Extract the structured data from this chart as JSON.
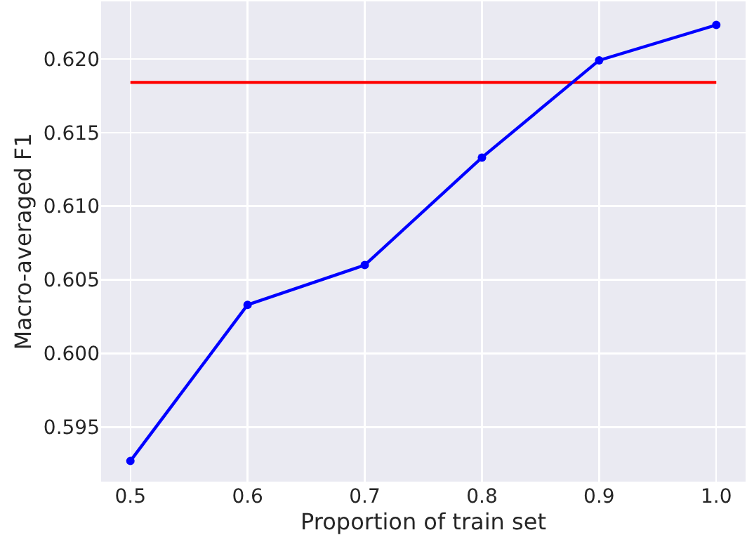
{
  "chart_data": {
    "type": "line",
    "xlabel": "Proportion of train set",
    "ylabel": "Macro-averaged F1",
    "x": [
      0.5,
      0.6,
      0.7,
      0.8,
      0.9,
      1.0
    ],
    "series": [
      {
        "color": "#0000ff",
        "values": [
          0.5927,
          0.6033,
          0.606,
          0.6133,
          0.6199,
          0.6223
        ]
      }
    ],
    "ref_lines": [
      {
        "axis": "y",
        "value": 0.6184,
        "color": "#ff0000",
        "line_style": "solid"
      }
    ],
    "xlim": [
      0.475,
      1.025
    ],
    "xticks": [
      {
        "value": 0.5,
        "label": "0.5"
      },
      {
        "value": 0.6,
        "label": "0.6"
      },
      {
        "value": 0.7,
        "label": "0.7"
      },
      {
        "value": 0.8,
        "label": "0.8"
      },
      {
        "value": 0.9,
        "label": "0.9"
      },
      {
        "value": 1.0,
        "label": "1.0"
      }
    ],
    "ylim": [
      0.5913,
      0.6239
    ],
    "yticks": [
      {
        "value": 0.595,
        "label": "0.595"
      },
      {
        "value": 0.6,
        "label": "0.600"
      },
      {
        "value": 0.605,
        "label": "0.605"
      },
      {
        "value": 0.61,
        "label": "0.610"
      },
      {
        "value": 0.615,
        "label": "0.615"
      },
      {
        "value": 0.62,
        "label": "0.620"
      }
    ],
    "grid": true,
    "marker": "circle",
    "line_style": "solid"
  }
}
